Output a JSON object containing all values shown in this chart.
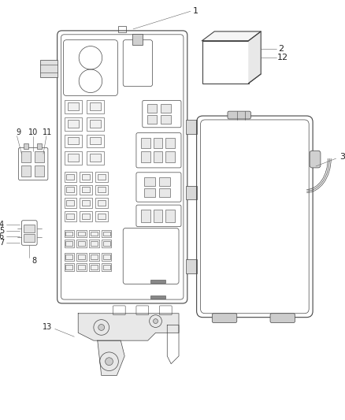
{
  "bg_color": "#ffffff",
  "fig_width": 4.38,
  "fig_height": 5.33,
  "dpi": 100,
  "line_color": "#444444",
  "label_fontsize": 7,
  "label_color": "#222222",
  "callout_leader_color": "#555555"
}
